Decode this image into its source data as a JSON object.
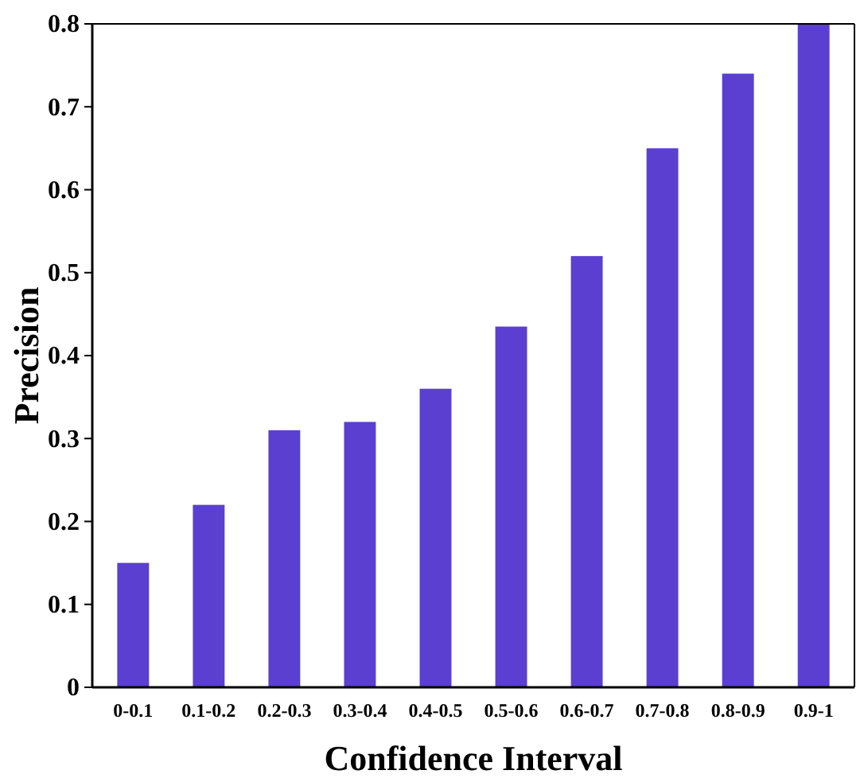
{
  "chart_data": {
    "type": "bar",
    "xlabel": "Confidence Interval",
    "ylabel": "Precision",
    "categories": [
      "0-0.1",
      "0.1-0.2",
      "0.2-0.3",
      "0.3-0.4",
      "0.4-0.5",
      "0.5-0.6",
      "0.6-0.7",
      "0.7-0.8",
      "0.8-0.9",
      "0.9-1"
    ],
    "values": [
      0.15,
      0.22,
      0.31,
      0.32,
      0.36,
      0.435,
      0.52,
      0.65,
      0.74,
      0.8
    ],
    "color": "#5a3fd0",
    "ylim": [
      0,
      0.8
    ],
    "yticks": [
      0,
      0.1,
      0.2,
      0.3,
      0.4,
      0.5,
      0.6,
      0.7,
      0.8
    ],
    "grid": false
  }
}
